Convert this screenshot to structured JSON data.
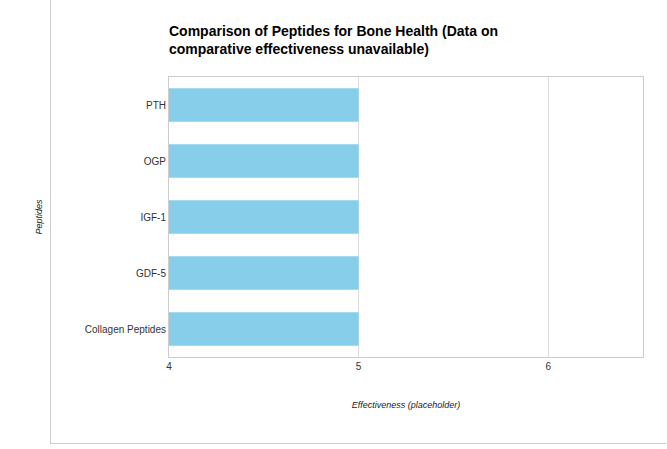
{
  "chart_data": {
    "type": "bar",
    "orientation": "horizontal",
    "title": "Comparison of Peptides for Bone Health (Data on comparative effectiveness unavailable)",
    "x_label": "Effectiveness (placeholder)",
    "y_label": "Peptides",
    "categories": [
      "PTH",
      "OGP",
      "IGF-1",
      "GDF-5",
      "Collagen Peptides"
    ],
    "values": [
      5,
      5,
      5,
      5,
      5
    ],
    "color": "#87ceeb",
    "xlim": [
      4,
      6.5
    ],
    "xticks": [
      4,
      5,
      6
    ],
    "grid": true
  }
}
